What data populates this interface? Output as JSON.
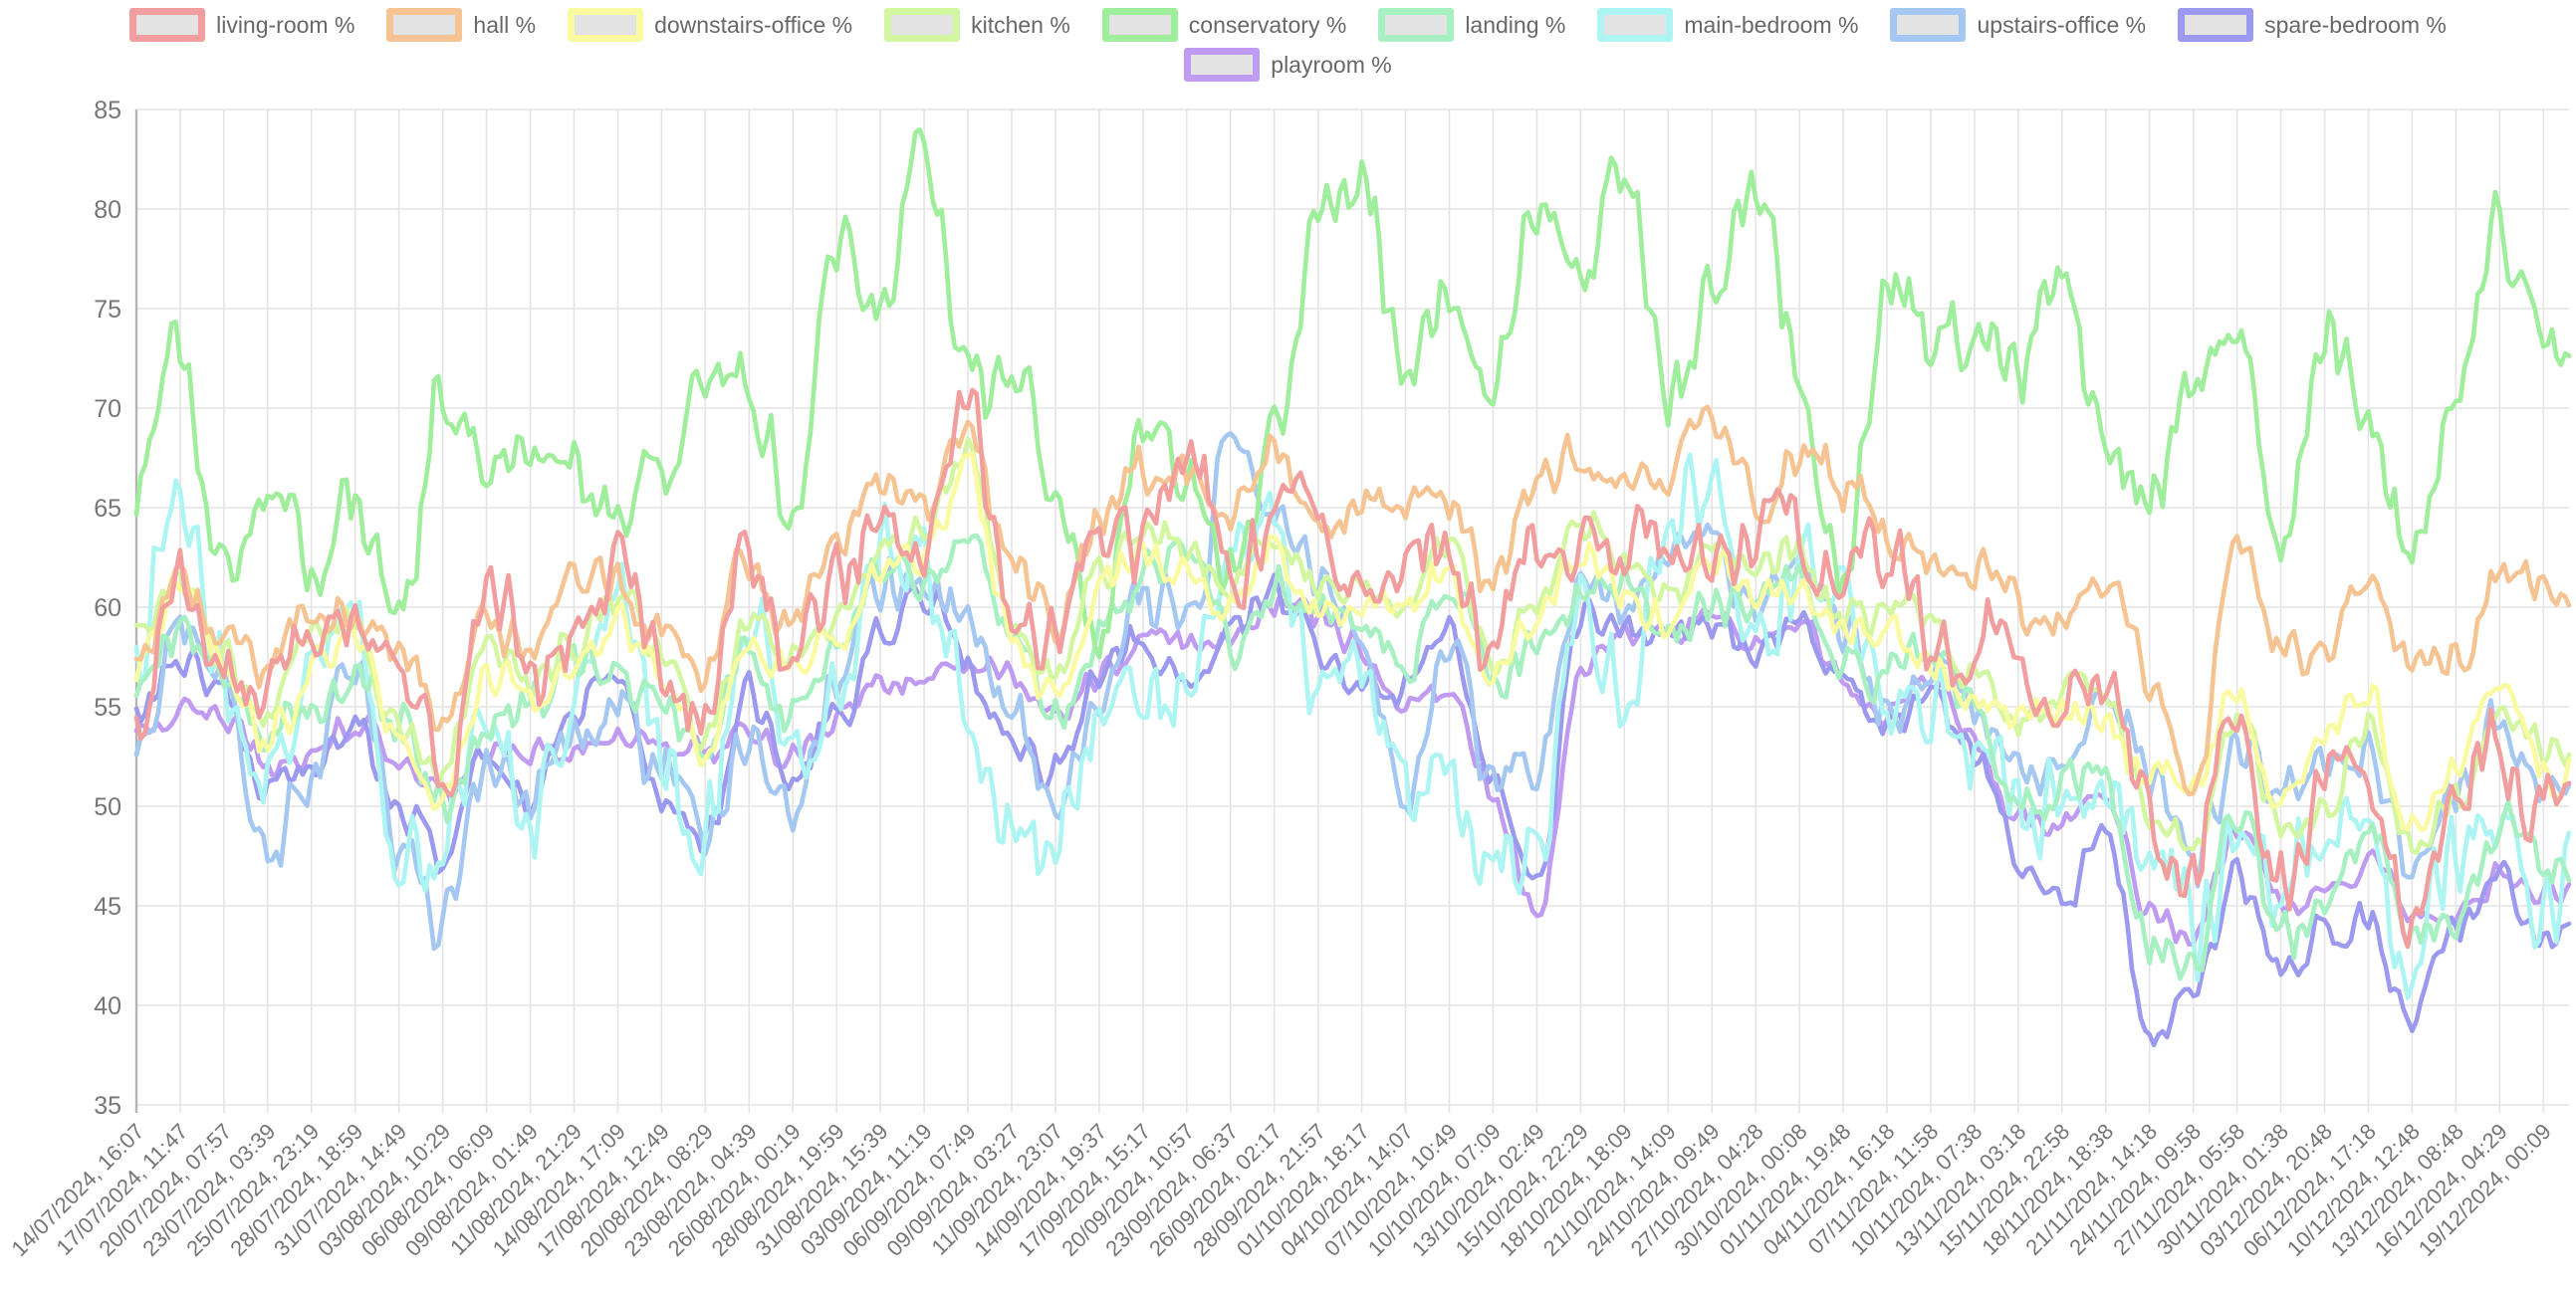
{
  "chart_data": {
    "type": "line",
    "title": "",
    "xlabel": "",
    "ylabel": "",
    "ylim": [
      35,
      85
    ],
    "y_ticks": [
      35,
      40,
      45,
      50,
      55,
      60,
      65,
      70,
      75,
      80,
      85
    ],
    "grid": true,
    "legend_position": "top",
    "x_tick_labels": [
      "14/07/2024, 16:07",
      "17/07/2024, 11:47",
      "20/07/2024, 07:57",
      "23/07/2024, 03:39",
      "25/07/2024, 23:19",
      "28/07/2024, 18:59",
      "31/07/2024, 14:49",
      "03/08/2024, 10:29",
      "06/08/2024, 06:09",
      "09/08/2024, 01:49",
      "11/08/2024, 21:29",
      "14/08/2024, 17:09",
      "17/08/2024, 12:49",
      "20/08/2024, 08:29",
      "23/08/2024, 04:39",
      "26/08/2024, 00:19",
      "28/08/2024, 19:59",
      "31/08/2024, 15:39",
      "03/09/2024, 11:19",
      "06/09/2024, 07:49",
      "09/09/2024, 03:27",
      "11/09/2024, 23:07",
      "14/09/2024, 19:37",
      "17/09/2024, 15:17",
      "20/09/2024, 10:57",
      "23/09/2024, 06:37",
      "26/09/2024, 02:17",
      "28/09/2024, 21:57",
      "01/10/2024, 18:17",
      "04/10/2024, 14:07",
      "07/10/2024, 10:49",
      "10/10/2024, 07:09",
      "13/10/2024, 02:49",
      "15/10/2024, 22:29",
      "18/10/2024, 18:09",
      "21/10/2024, 14:09",
      "24/10/2024, 09:49",
      "27/10/2024, 04:28",
      "30/10/2024, 00:08",
      "01/11/2024, 19:48",
      "04/11/2024, 16:18",
      "07/11/2024, 11:58",
      "10/11/2024, 07:38",
      "13/11/2024, 03:18",
      "15/11/2024, 22:58",
      "18/11/2024, 18:38",
      "21/11/2024, 14:18",
      "24/11/2024, 09:58",
      "27/11/2024, 05:58",
      "30/11/2024, 01:38",
      "03/12/2024, 20:48",
      "06/12/2024, 17:18",
      "10/12/2024, 12:48",
      "13/12/2024, 08:48",
      "16/12/2024, 04:29",
      "19/12/2024, 00:09"
    ],
    "series": [
      {
        "name": "living-room %",
        "color": "#f29e9e",
        "jitter": 2.4,
        "values": [
          53,
          61,
          58,
          55,
          59,
          60,
          56,
          53,
          59,
          57,
          60,
          61,
          58,
          55,
          62,
          59,
          60,
          64,
          64,
          69,
          61,
          58,
          63,
          65,
          66,
          63,
          65,
          62,
          63,
          61,
          63,
          59,
          62,
          64,
          63,
          62,
          64,
          62,
          64,
          62,
          61,
          60,
          58,
          57,
          56,
          55,
          50,
          46,
          54,
          47,
          50,
          52,
          46,
          49,
          54,
          50
        ]
      },
      {
        "name": "hall %",
        "color": "#f5c492",
        "jitter": 1.5,
        "values": [
          56,
          62,
          59,
          56,
          60,
          61,
          57,
          54,
          60,
          58,
          61,
          62,
          59,
          56,
          63,
          60,
          62,
          66,
          66,
          68,
          62,
          60,
          64,
          66,
          68,
          65,
          67,
          64,
          66,
          64,
          66,
          62,
          65,
          67,
          68,
          66,
          69,
          66,
          68,
          65,
          64,
          63,
          61,
          60,
          60,
          61,
          56,
          52,
          63,
          57,
          59,
          62,
          56,
          58,
          62,
          60
        ]
      },
      {
        "name": "downstairs-office %",
        "color": "#fafaa0",
        "jitter": 1.3,
        "values": [
          57,
          60,
          57,
          54,
          57,
          58,
          54,
          51,
          56,
          55,
          58,
          59,
          56,
          53,
          59,
          56,
          58,
          63,
          63,
          66,
          59,
          56,
          60,
          62,
          63,
          60,
          62,
          60,
          61,
          59,
          61,
          57,
          60,
          62,
          61,
          60,
          62,
          60,
          62,
          59,
          58,
          58,
          56,
          54,
          54,
          55,
          52,
          50,
          56,
          51,
          53,
          55,
          50,
          52,
          56,
          52
        ]
      },
      {
        "name": "kitchen %",
        "color": "#d3f7a0",
        "jitter": 1.3,
        "values": [
          58,
          61,
          58,
          55,
          58,
          59,
          55,
          52,
          57,
          56,
          59,
          60,
          57,
          54,
          60,
          57,
          59,
          64,
          64,
          67,
          60,
          57,
          61,
          63,
          64,
          61,
          63,
          61,
          62,
          60,
          62,
          58,
          61,
          63,
          62,
          61,
          63,
          61,
          63,
          60,
          59,
          59,
          57,
          55,
          55,
          56,
          51,
          48,
          54,
          49,
          51,
          53,
          48,
          51,
          55,
          52
        ]
      },
      {
        "name": "conservatory %",
        "color": "#9fee9b",
        "jitter": 2.4,
        "values": [
          65,
          71,
          63,
          67,
          60,
          66,
          60,
          70,
          66,
          70,
          67,
          62,
          68,
          72,
          69,
          65,
          80,
          74,
          82,
          74,
          70,
          65,
          59,
          70,
          65,
          62,
          70,
          78,
          82,
          73,
          75,
          70,
          82,
          76,
          80,
          72,
          77,
          80,
          72,
          63,
          75,
          73,
          75,
          72,
          74,
          70,
          66,
          70,
          74,
          65,
          73,
          69,
          64,
          70,
          78,
          75
        ]
      },
      {
        "name": "landing %",
        "color": "#a7f0c2",
        "jitter": 1.5,
        "values": [
          57,
          60,
          56,
          53,
          56,
          57,
          53,
          50,
          55,
          54,
          57,
          58,
          55,
          52,
          58,
          55,
          57,
          62,
          62,
          64,
          58,
          55,
          59,
          61,
          62,
          59,
          61,
          59,
          60,
          58,
          60,
          56,
          59,
          61,
          60,
          59,
          61,
          59,
          61,
          58,
          57,
          57,
          55,
          51,
          50,
          51,
          44,
          42,
          49,
          44,
          46,
          48,
          43,
          45,
          49,
          46
        ]
      },
      {
        "name": "main-bedroom %",
        "color": "#adf5f2",
        "jitter": 2.8,
        "values": [
          56,
          66,
          58,
          51,
          55,
          60,
          49,
          46,
          54,
          51,
          56,
          59,
          53,
          50,
          58,
          52,
          57,
          63,
          60,
          56,
          49,
          46,
          53,
          58,
          55,
          61,
          66,
          58,
          55,
          51,
          53,
          48,
          46,
          61,
          58,
          62,
          65,
          60,
          63,
          58,
          55,
          57,
          52,
          49,
          51,
          52,
          46,
          44,
          50,
          45,
          47,
          50,
          43,
          46,
          50,
          47
        ]
      },
      {
        "name": "upstairs-office %",
        "color": "#a5c8f3",
        "jitter": 1.9,
        "values": [
          53,
          58,
          55,
          49,
          52,
          56,
          48,
          45,
          52,
          49,
          54,
          56,
          51,
          48,
          55,
          50,
          55,
          61,
          62,
          59,
          54,
          51,
          57,
          60,
          58,
          69,
          66,
          60,
          58,
          52,
          59,
          50,
          52,
          62,
          59,
          62,
          64,
          60,
          62,
          58,
          56,
          57,
          54,
          52,
          53,
          55,
          50,
          48,
          54,
          50,
          52,
          54,
          48,
          50,
          54,
          52
        ]
      },
      {
        "name": "spare-bedroom %",
        "color": "#9c99f0",
        "jitter": 1.2,
        "values": [
          55,
          58,
          55,
          50,
          53,
          55,
          49,
          47,
          53,
          51,
          54,
          56,
          51,
          49,
          55,
          51,
          55,
          59,
          60,
          57,
          54,
          52,
          56,
          58,
          57,
          59,
          60,
          58,
          57,
          56,
          58,
          52,
          47,
          59,
          58,
          59,
          60,
          57,
          59,
          57,
          55,
          55,
          52,
          48,
          46,
          48,
          38,
          41,
          47,
          41,
          43,
          45,
          40,
          43,
          46,
          44
        ]
      },
      {
        "name": "playroom %",
        "color": "#bf9bf2",
        "jitter": 0.9,
        "values": [
          54,
          55,
          54,
          52,
          53,
          54,
          52,
          51,
          53,
          52,
          53,
          54,
          53,
          52,
          54,
          53,
          54,
          56,
          57,
          57,
          56,
          55,
          57,
          58,
          58,
          59,
          60,
          59,
          58,
          56,
          55,
          50,
          45,
          57,
          58,
          59,
          60,
          58,
          59,
          57,
          55,
          56,
          53,
          50,
          49,
          50,
          45,
          44,
          48,
          45,
          46,
          47,
          44,
          45,
          47,
          45
        ]
      }
    ]
  },
  "legend": {
    "swatch_fill": "#e3e3e3",
    "text_color": "#686868"
  },
  "axis_style": {
    "tick_text_color": "#757575",
    "grid_color": "#e4e4e4",
    "axis_line_color": "#b4b4b4"
  }
}
